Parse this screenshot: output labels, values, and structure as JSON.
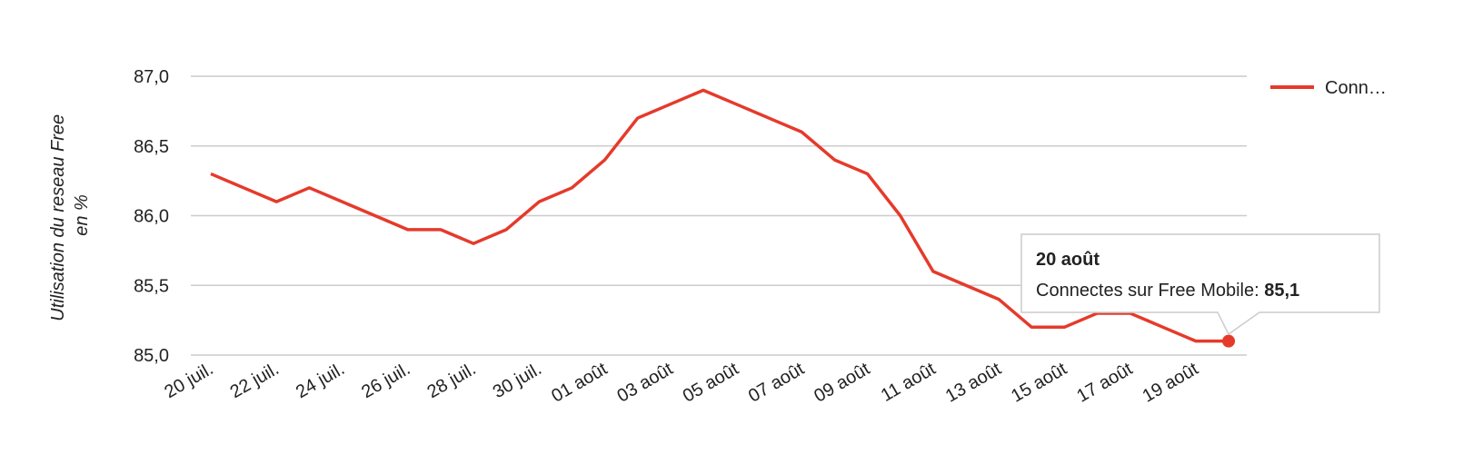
{
  "chart_data": {
    "type": "line",
    "y_label": [
      "Utilisation du reseau Free",
      "en %"
    ],
    "categories": [
      "20 juil.",
      null,
      "22 juil.",
      null,
      "24 juil.",
      null,
      "26 juil.",
      null,
      "28 juil.",
      null,
      "30 juil.",
      null,
      "01 août",
      null,
      "03 août",
      null,
      "05 août",
      null,
      "07 août",
      null,
      "09 août",
      null,
      "11 août",
      null,
      "13 août",
      null,
      "15 août",
      null,
      "17 août",
      null,
      "19 août",
      null
    ],
    "series": [
      {
        "name": "Conn…",
        "color": "#e53a2b",
        "values": [
          86.3,
          86.2,
          86.1,
          86.2,
          86.1,
          86.0,
          85.9,
          85.9,
          85.8,
          85.9,
          86.1,
          86.2,
          86.4,
          86.7,
          86.8,
          86.9,
          86.8,
          86.7,
          86.6,
          86.4,
          86.3,
          86.0,
          85.6,
          85.5,
          85.4,
          85.2,
          85.2,
          85.3,
          85.3,
          85.2,
          85.1,
          85.1
        ]
      }
    ],
    "ylim": [
      85,
      87
    ],
    "yticks": [
      {
        "value": 85,
        "label": "85,0"
      },
      {
        "value": 85.5,
        "label": "85,5"
      },
      {
        "value": 86,
        "label": "86,0"
      },
      {
        "value": 86.5,
        "label": "86,5"
      },
      {
        "value": 87,
        "label": "87,0"
      }
    ],
    "grid": true,
    "legend": "right",
    "tooltip": {
      "title": "20 août",
      "label": "Connectes sur Free Mobile:",
      "value": 85.1,
      "value_label": "85,1"
    }
  }
}
